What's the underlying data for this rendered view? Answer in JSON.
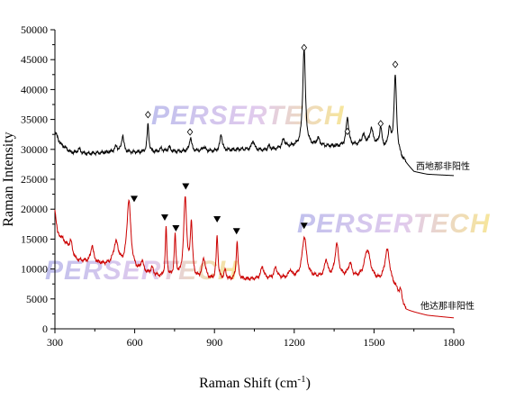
{
  "chart_data": {
    "type": "line",
    "xlabel": "Raman Shift",
    "xlabel_unit_base": "cm",
    "xlabel_unit_exp": "-1",
    "ylabel": "Raman Intensity",
    "xlim": [
      300,
      1800
    ],
    "ylim": [
      0,
      50000
    ],
    "x_ticks": [
      300,
      600,
      900,
      1200,
      1500,
      1800
    ],
    "y_ticks": [
      0,
      5000,
      10000,
      15000,
      20000,
      25000,
      30000,
      35000,
      40000,
      45000,
      50000
    ],
    "grid": false,
    "watermarks": [
      "PERSERTECH",
      "PERSERTECH",
      "PERSERTECH"
    ],
    "series": [
      {
        "name": "西地那非阳性",
        "color": "#000000",
        "marker": "open-diamond",
        "baseline": [
          [
            300,
            33000
          ],
          [
            320,
            31000
          ],
          [
            360,
            29500
          ],
          [
            400,
            29200
          ],
          [
            500,
            29500
          ],
          [
            600,
            29500
          ],
          [
            700,
            29500
          ],
          [
            800,
            29700
          ],
          [
            900,
            29700
          ],
          [
            1000,
            30000
          ],
          [
            1100,
            29800
          ],
          [
            1200,
            30500
          ],
          [
            1300,
            30500
          ],
          [
            1400,
            30500
          ],
          [
            1500,
            31000
          ],
          [
            1600,
            28500
          ],
          [
            1650,
            26200
          ],
          [
            1700,
            25800
          ],
          [
            1800,
            25600
          ]
        ],
        "peaks": [
          {
            "x": 392,
            "h": 800,
            "w": 8
          },
          {
            "x": 530,
            "h": 900,
            "w": 8
          },
          {
            "x": 555,
            "h": 2800,
            "w": 5
          },
          {
            "x": 650,
            "h": 4700,
            "w": 4
          },
          {
            "x": 700,
            "h": 600,
            "w": 8
          },
          {
            "x": 730,
            "h": 800,
            "w": 6
          },
          {
            "x": 810,
            "h": 2300,
            "w": 5
          },
          {
            "x": 860,
            "h": 700,
            "w": 6
          },
          {
            "x": 925,
            "h": 2800,
            "w": 5
          },
          {
            "x": 1045,
            "h": 1500,
            "w": 6
          },
          {
            "x": 1105,
            "h": 700,
            "w": 6
          },
          {
            "x": 1160,
            "h": 1400,
            "w": 7
          },
          {
            "x": 1237,
            "h": 16500,
            "w": 6
          },
          {
            "x": 1290,
            "h": 1200,
            "w": 7
          },
          {
            "x": 1400,
            "h": 4800,
            "w": 6
          },
          {
            "x": 1460,
            "h": 1500,
            "w": 8
          },
          {
            "x": 1490,
            "h": 2500,
            "w": 6
          },
          {
            "x": 1525,
            "h": 3200,
            "w": 5
          },
          {
            "x": 1558,
            "h": 3500,
            "w": 6
          },
          {
            "x": 1580,
            "h": 13000,
            "w": 6
          }
        ],
        "markers": [
          [
            650,
            35800
          ],
          [
            808,
            32900
          ],
          [
            1237,
            47000
          ],
          [
            1400,
            33000
          ],
          [
            1525,
            34300
          ],
          [
            1580,
            44200
          ]
        ]
      },
      {
        "name": "他达那非阳性",
        "color": "#cc0000",
        "marker": "filled-triangle-down",
        "baseline": [
          [
            300,
            20000
          ],
          [
            310,
            16000
          ],
          [
            330,
            15000
          ],
          [
            380,
            11500
          ],
          [
            450,
            11000
          ],
          [
            500,
            10500
          ],
          [
            600,
            9500
          ],
          [
            700,
            8500
          ],
          [
            800,
            8000
          ],
          [
            900,
            8000
          ],
          [
            1000,
            8200
          ],
          [
            1100,
            8300
          ],
          [
            1200,
            8500
          ],
          [
            1300,
            8500
          ],
          [
            1400,
            8500
          ],
          [
            1500,
            7800
          ],
          [
            1580,
            6500
          ],
          [
            1620,
            3000
          ],
          [
            1700,
            2200
          ],
          [
            1800,
            1800
          ]
        ],
        "peaks": [
          {
            "x": 360,
            "h": 1800,
            "w": 6
          },
          {
            "x": 440,
            "h": 2800,
            "w": 6
          },
          {
            "x": 530,
            "h": 4000,
            "w": 12
          },
          {
            "x": 578,
            "h": 11500,
            "w": 9
          },
          {
            "x": 628,
            "h": 1800,
            "w": 6
          },
          {
            "x": 665,
            "h": 1200,
            "w": 6
          },
          {
            "x": 718,
            "h": 8200,
            "w": 3.5
          },
          {
            "x": 752,
            "h": 6800,
            "w": 4
          },
          {
            "x": 790,
            "h": 13500,
            "w": 7
          },
          {
            "x": 813,
            "h": 9000,
            "w": 5
          },
          {
            "x": 860,
            "h": 3500,
            "w": 8
          },
          {
            "x": 910,
            "h": 7400,
            "w": 4
          },
          {
            "x": 940,
            "h": 1500,
            "w": 5
          },
          {
            "x": 985,
            "h": 6300,
            "w": 4
          },
          {
            "x": 1080,
            "h": 2000,
            "w": 7
          },
          {
            "x": 1130,
            "h": 1800,
            "w": 7
          },
          {
            "x": 1185,
            "h": 1200,
            "w": 6
          },
          {
            "x": 1238,
            "h": 6800,
            "w": 10
          },
          {
            "x": 1320,
            "h": 2800,
            "w": 7
          },
          {
            "x": 1360,
            "h": 5500,
            "w": 8
          },
          {
            "x": 1410,
            "h": 2200,
            "w": 8
          },
          {
            "x": 1475,
            "h": 5000,
            "w": 14
          },
          {
            "x": 1550,
            "h": 6000,
            "w": 12
          },
          {
            "x": 1600,
            "h": 1500,
            "w": 6
          }
        ],
        "markers": [
          [
            598,
            21700
          ],
          [
            713,
            18600
          ],
          [
            755,
            16800
          ],
          [
            792,
            23800
          ],
          [
            910,
            18300
          ],
          [
            983,
            16300
          ],
          [
            1237,
            17200
          ]
        ]
      }
    ]
  }
}
